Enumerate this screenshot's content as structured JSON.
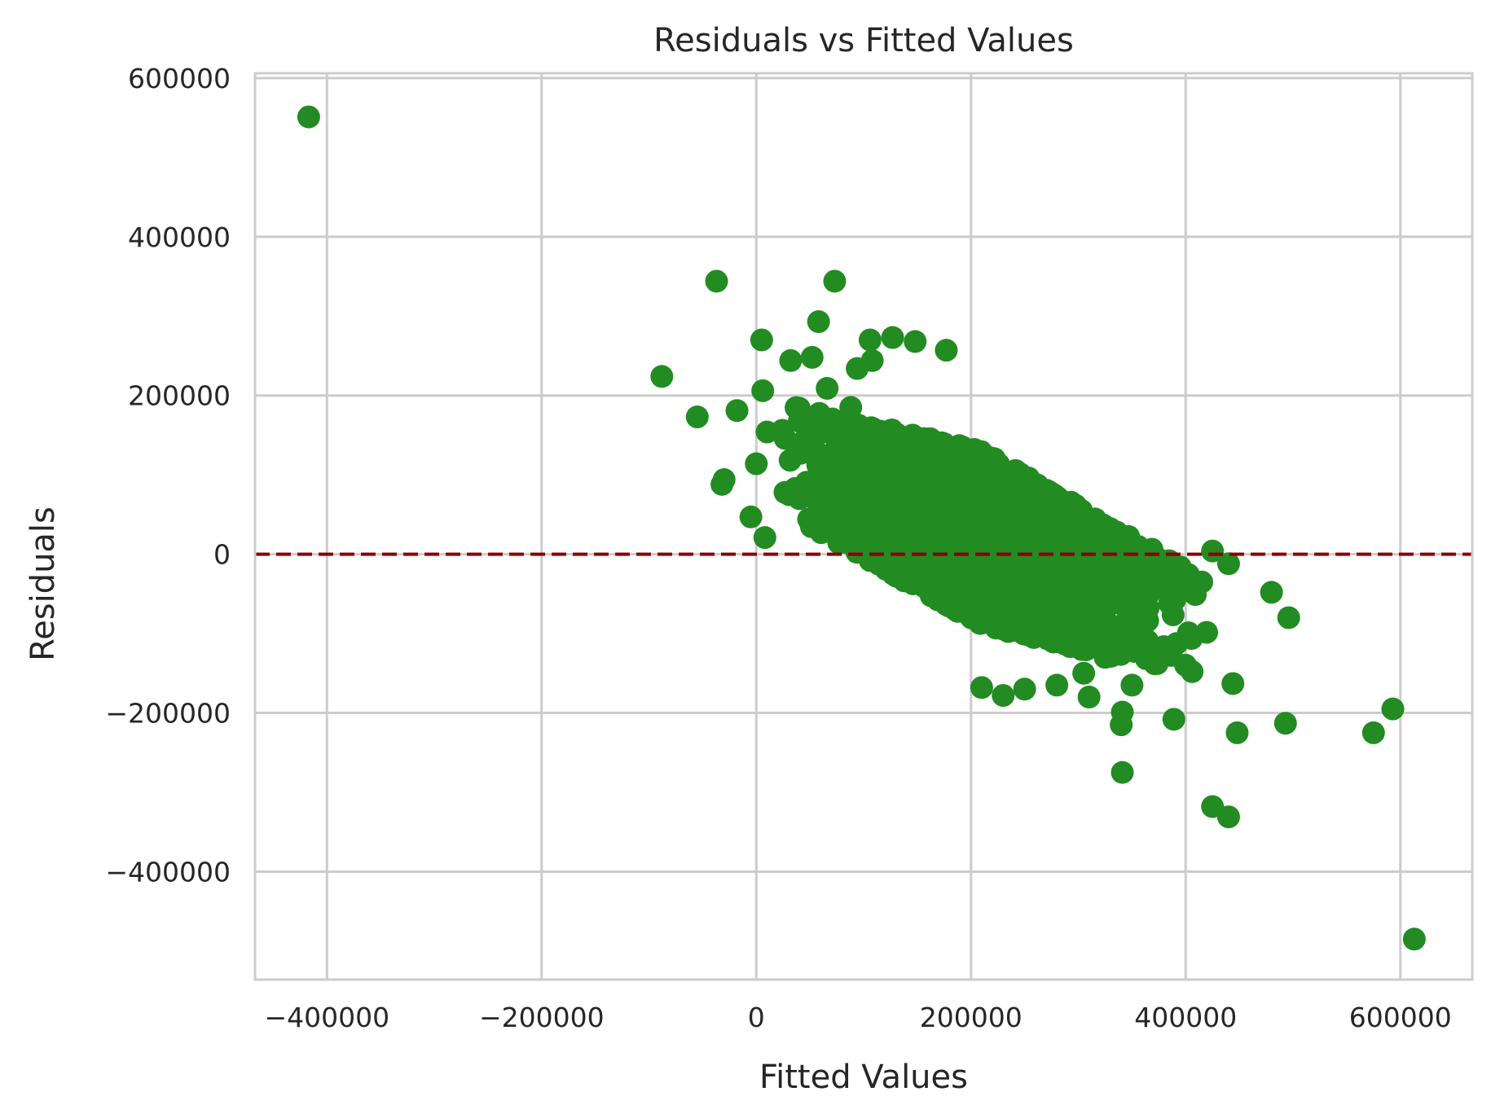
{
  "chart_data": {
    "type": "scatter",
    "title": "Residuals vs Fitted Values",
    "xlabel": "Fitted Values",
    "ylabel": "Residuals",
    "xlim": [
      -467000,
      667000
    ],
    "ylim": [
      -536000,
      606000
    ],
    "x_ticks": [
      -400000,
      -200000,
      0,
      200000,
      400000,
      600000
    ],
    "y_ticks": [
      -400000,
      -200000,
      0,
      200000,
      400000,
      600000
    ],
    "x_tick_labels": [
      "−400000",
      "−200000",
      "0",
      "200000",
      "400000",
      "600000"
    ],
    "y_tick_labels": [
      "−400000",
      "−200000",
      "0",
      "200000",
      "400000",
      "600000"
    ],
    "grid": true,
    "point_color": "#228b22",
    "reference_line": {
      "y": 0,
      "color": "#8b0000",
      "style": "dashed"
    },
    "dense_cluster": {
      "description_only": false,
      "x_range": [
        20000,
        420000
      ],
      "trend_slope": -0.55,
      "center": [
        210000,
        20000
      ],
      "band_half_width": 110000
    },
    "series": [
      {
        "values": [
          [
            -417000,
            551000
          ],
          [
            -37000,
            344000
          ],
          [
            73000,
            344000
          ],
          [
            58000,
            293000
          ],
          [
            5000,
            270000
          ],
          [
            106000,
            270000
          ],
          [
            127000,
            273000
          ],
          [
            148000,
            268000
          ],
          [
            177000,
            257000
          ],
          [
            52000,
            248000
          ],
          [
            32000,
            244000
          ],
          [
            -88000,
            224000
          ],
          [
            6000,
            206000
          ],
          [
            66000,
            209000
          ],
          [
            -55000,
            173000
          ],
          [
            -18000,
            181000
          ],
          [
            40000,
            184000
          ],
          [
            88000,
            185000
          ],
          [
            94000,
            234000
          ],
          [
            108000,
            244000
          ],
          [
            10000,
            154000
          ],
          [
            -30000,
            94000
          ],
          [
            -32000,
            88000
          ],
          [
            0,
            114000
          ],
          [
            -5000,
            47000
          ],
          [
            8000,
            21000
          ],
          [
            425000,
            4000
          ],
          [
            440000,
            -12000
          ],
          [
            480000,
            -48000
          ],
          [
            496000,
            -80000
          ],
          [
            406000,
            -148000
          ],
          [
            444000,
            -163000
          ],
          [
            350000,
            -165000
          ],
          [
            341000,
            -199000
          ],
          [
            340000,
            -215000
          ],
          [
            389000,
            -208000
          ],
          [
            448000,
            -225000
          ],
          [
            493000,
            -213000
          ],
          [
            575000,
            -225000
          ],
          [
            593000,
            -195000
          ],
          [
            341000,
            -275000
          ],
          [
            425000,
            -318000
          ],
          [
            440000,
            -331000
          ],
          [
            613000,
            -485000
          ],
          [
            305000,
            -150000
          ],
          [
            310000,
            -180000
          ],
          [
            280000,
            -165000
          ],
          [
            250000,
            -170000
          ],
          [
            230000,
            -178000
          ],
          [
            210000,
            -168000
          ],
          [
            355000,
            -115000
          ],
          [
            325000,
            -130000
          ],
          [
            385000,
            -62000
          ],
          [
            365000,
            -68000
          ],
          [
            400000,
            -45000
          ],
          [
            415000,
            -35000
          ]
        ]
      }
    ]
  }
}
